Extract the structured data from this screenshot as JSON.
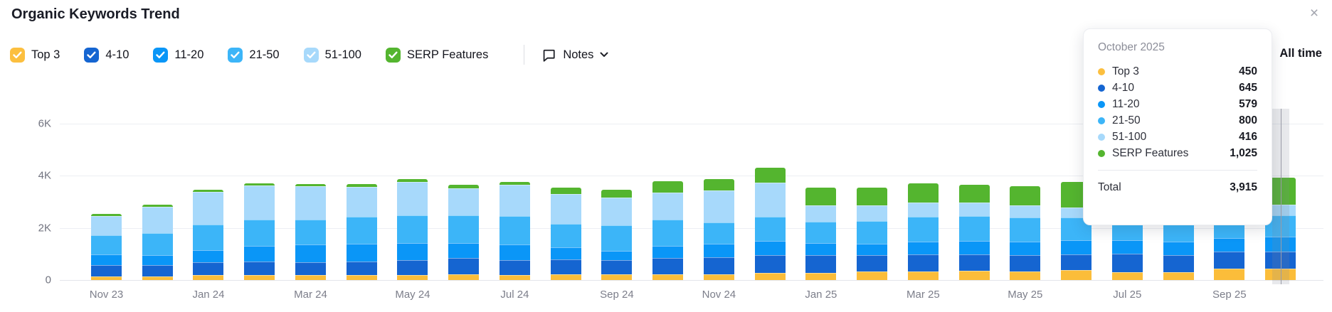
{
  "header": {
    "title": "Organic Keywords Trend",
    "close_glyph": "×"
  },
  "legend": {
    "items": [
      {
        "label": "Top 3",
        "color": "#FCBF3F",
        "checked": true
      },
      {
        "label": "4-10",
        "color": "#1565D1",
        "checked": true
      },
      {
        "label": "11-20",
        "color": "#0A96F7",
        "checked": true
      },
      {
        "label": "21-50",
        "color": "#3CB5F8",
        "checked": true
      },
      {
        "label": "51-100",
        "color": "#A7D9FB",
        "checked": true
      },
      {
        "label": "SERP Features",
        "color": "#54B52F",
        "checked": true
      }
    ]
  },
  "toolbar": {
    "notes_label": "Notes",
    "all_time_label": "All time"
  },
  "chart_data": {
    "type": "bar",
    "stacked": true,
    "title": "Organic Keywords Trend",
    "ylim": [
      0,
      6000
    ],
    "yticks": [
      {
        "label": "0",
        "value": 0
      },
      {
        "label": "2K",
        "value": 2000
      },
      {
        "label": "4K",
        "value": 4000
      },
      {
        "label": "6K",
        "value": 6000
      }
    ],
    "categories": [
      "Nov 23",
      "Dec 23",
      "Jan 24",
      "Feb 24",
      "Mar 24",
      "Apr 24",
      "May 24",
      "Jun 24",
      "Jul 24",
      "Aug 24",
      "Sep 24",
      "Oct 24",
      "Nov 24",
      "Dec 24",
      "Jan 25",
      "Feb 25",
      "Mar 25",
      "Apr 25",
      "May 25",
      "Jun 25",
      "Jul 25",
      "Aug 25",
      "Sep 25",
      "Oct 25"
    ],
    "xtick_shown_every": 2,
    "series": [
      {
        "name": "Top 3",
        "color": "#FBBD3A",
        "values": [
          130,
          130,
          200,
          185,
          190,
          205,
          190,
          230,
          200,
          230,
          220,
          230,
          220,
          260,
          275,
          320,
          325,
          360,
          340,
          385,
          300,
          310,
          430,
          450
        ]
      },
      {
        "name": "4-10",
        "color": "#1565D1",
        "values": [
          430,
          435,
          475,
          515,
          485,
          500,
          575,
          610,
          565,
          565,
          545,
          610,
          660,
          700,
          690,
          620,
          665,
          610,
          610,
          605,
          700,
          640,
          650,
          645
        ]
      },
      {
        "name": "11-20",
        "color": "#0A96F7",
        "values": [
          410,
          390,
          465,
          610,
          685,
          690,
          660,
          585,
          590,
          455,
          365,
          475,
          500,
          525,
          445,
          455,
          475,
          540,
          530,
          540,
          540,
          520,
          540,
          579
        ]
      },
      {
        "name": "21-50",
        "color": "#3CB5F8",
        "values": [
          755,
          840,
          990,
          1010,
          965,
          1020,
          1040,
          1040,
          1090,
          910,
          965,
          985,
          830,
          950,
          815,
          860,
          960,
          945,
          925,
          880,
          930,
          900,
          910,
          800
        ]
      },
      {
        "name": "51-100",
        "color": "#A7D9FB",
        "values": [
          730,
          1000,
          1255,
          1290,
          1260,
          1145,
          1280,
          1035,
          1190,
          1140,
          1065,
          1050,
          1220,
          1295,
          635,
          590,
          540,
          510,
          450,
          375,
          420,
          470,
          490,
          416
        ]
      },
      {
        "name": "SERP Features",
        "color": "#54B52F",
        "values": [
          85,
          75,
          75,
          90,
          90,
          100,
          115,
          155,
          110,
          225,
          300,
          425,
          430,
          580,
          665,
          700,
          745,
          680,
          735,
          970,
          810,
          730,
          620,
          1025
        ]
      }
    ],
    "highlighted_index": 23,
    "highlighted_month": "Oct 25",
    "legend_position": "top",
    "grid": true
  },
  "tooltip": {
    "title": "October 2025",
    "rows": [
      {
        "label": "Top 3",
        "value": "450",
        "color": "#FCBF3F"
      },
      {
        "label": "4-10",
        "value": "645",
        "color": "#1565D1"
      },
      {
        "label": "11-20",
        "value": "579",
        "color": "#0A96F7"
      },
      {
        "label": "21-50",
        "value": "800",
        "color": "#3CB5F8"
      },
      {
        "label": "51-100",
        "value": "416",
        "color": "#A7D9FB"
      },
      {
        "label": "SERP Features",
        "value": "1,025",
        "color": "#54B52F"
      }
    ],
    "total_label": "Total",
    "total_value": "3,915"
  }
}
